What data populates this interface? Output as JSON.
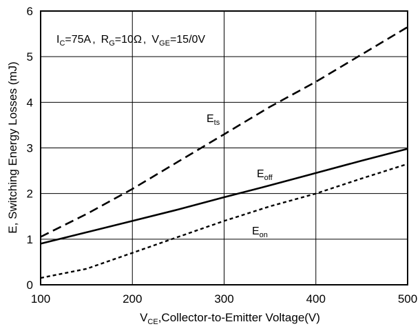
{
  "chart_data": {
    "type": "line",
    "title": "",
    "xlabel": {
      "main": "V",
      "sub": "CE",
      "rest": ",Collector-to-Emitter Voltage(V)"
    },
    "ylabel": "E, Switching Energy Losses (mJ)",
    "xlim": [
      100,
      500
    ],
    "ylim": [
      0,
      6
    ],
    "xticks": [
      100,
      200,
      300,
      400,
      500
    ],
    "yticks": [
      0,
      1,
      2,
      3,
      4,
      5,
      6
    ],
    "grid": true,
    "conditions": {
      "ic_main": "I",
      "ic_sub": "C",
      "ic_rest": "=75A",
      "sep1": ",",
      "rg_main": "R",
      "rg_sub": "G",
      "rg_rest": "=10Ω",
      "sep2": ",",
      "vge_main": "V",
      "vge_sub": "GE",
      "vge_rest": "=15/0V"
    },
    "series": [
      {
        "name": "E_ts",
        "label_main": "E",
        "label_sub": "ts",
        "style": "long-dash",
        "x": [
          100,
          150,
          200,
          250,
          300,
          350,
          400,
          450,
          500
        ],
        "y": [
          1.05,
          1.55,
          2.1,
          2.7,
          3.3,
          3.9,
          4.45,
          5.05,
          5.65
        ]
      },
      {
        "name": "E_off",
        "label_main": "E",
        "label_sub": "off",
        "style": "solid",
        "x": [
          100,
          150,
          200,
          250,
          300,
          350,
          400,
          450,
          500
        ],
        "y": [
          0.9,
          1.15,
          1.4,
          1.65,
          1.92,
          2.18,
          2.45,
          2.72,
          2.98
        ]
      },
      {
        "name": "E_on",
        "label_main": "E",
        "label_sub": "on",
        "style": "short-dash",
        "x": [
          100,
          150,
          200,
          250,
          300,
          350,
          400,
          450,
          500
        ],
        "y": [
          0.15,
          0.35,
          0.7,
          1.05,
          1.4,
          1.72,
          2.0,
          2.33,
          2.65
        ]
      }
    ]
  }
}
